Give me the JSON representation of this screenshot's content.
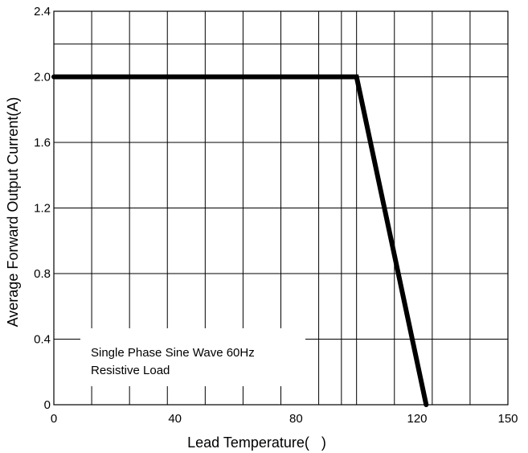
{
  "chart_data": {
    "type": "line",
    "xlabel": "Lead Temperature(   )",
    "ylabel": "Average Forward Output Current(A)",
    "xlim": [
      0,
      150
    ],
    "ylim": [
      0,
      2.4
    ],
    "x_ticks": [
      0,
      40,
      80,
      120,
      150
    ],
    "x_tick_labels": [
      "0",
      "40",
      "80",
      "120",
      "150"
    ],
    "y_ticks": [
      0,
      0.4,
      0.8,
      1.2,
      1.6,
      2.0,
      2.4
    ],
    "y_tick_labels": [
      "0",
      "0.4",
      "0.8",
      "1.2",
      "1.6",
      "2.0",
      "2.4"
    ],
    "x_grid": [
      0,
      12.5,
      25,
      37.5,
      50,
      62.5,
      75,
      87.5,
      95,
      100,
      112.5,
      125,
      137.5,
      150
    ],
    "y_grid": [
      0,
      0.4,
      0.8,
      1.2,
      1.6,
      2.0,
      2.2,
      2.4
    ],
    "grid": true,
    "series": [
      {
        "x": [
          0,
          100,
          123
        ],
        "y": [
          2.0,
          2.0,
          0
        ]
      }
    ],
    "annotation": [
      "Single Phase Sine Wave 60Hz",
      "Resistive Load"
    ]
  }
}
